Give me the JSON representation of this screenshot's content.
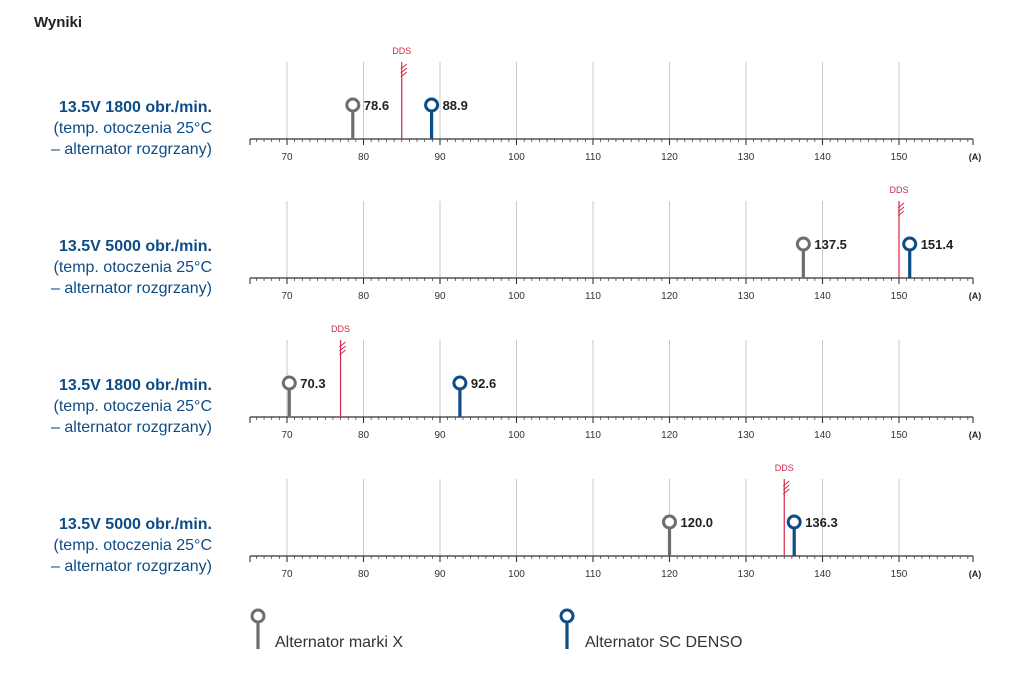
{
  "heading": "Wyniki",
  "colors": {
    "marka_x": "#6e6e6e",
    "denso": "#0e4c86",
    "dds": "#d0284b",
    "grid": "#c8c8c8",
    "axis": "#333333"
  },
  "chart_data": [
    {
      "type": "scatter",
      "title_line1": "13.5V 1800 obr./min.",
      "title_line2": "(temp. otoczenia 25°C",
      "title_line3": "– alternator rozgrzany)",
      "dds_label": "DDS",
      "dds_value": 85,
      "series": [
        {
          "name": "Alternator marki X",
          "value": 78.6,
          "label": "78.6"
        },
        {
          "name": "Alternator SC DENSO",
          "value": 88.9,
          "label": "88.9"
        }
      ],
      "xticks": [
        "70",
        "80",
        "90",
        "100",
        "110",
        "120",
        "130",
        "140",
        "150"
      ],
      "xlim": [
        65,
        160
      ],
      "unit": "(A)"
    },
    {
      "type": "scatter",
      "title_line1": "13.5V 5000 obr./min.",
      "title_line2": "(temp. otoczenia 25°C",
      "title_line3": "– alternator rozgrzany)",
      "dds_label": "DDS",
      "dds_value": 150,
      "series": [
        {
          "name": "Alternator marki X",
          "value": 137.5,
          "label": "137.5"
        },
        {
          "name": "Alternator SC DENSO",
          "value": 151.4,
          "label": "151.4"
        }
      ],
      "xticks": [
        "70",
        "80",
        "90",
        "100",
        "110",
        "120",
        "130",
        "140",
        "150"
      ],
      "xlim": [
        65,
        160
      ],
      "unit": "(A)"
    },
    {
      "type": "scatter",
      "title_line1": "13.5V 1800 obr./min.",
      "title_line2": "(temp. otoczenia 25°C",
      "title_line3": "– alternator rozgrzany)",
      "dds_label": "DDS",
      "dds_value": 77,
      "series": [
        {
          "name": "Alternator marki X",
          "value": 70.3,
          "label": "70.3"
        },
        {
          "name": "Alternator SC DENSO",
          "value": 92.6,
          "label": "92.6"
        }
      ],
      "xticks": [
        "70",
        "80",
        "90",
        "100",
        "110",
        "120",
        "130",
        "140",
        "150"
      ],
      "xlim": [
        65,
        160
      ],
      "unit": "(A)"
    },
    {
      "type": "scatter",
      "title_line1": "13.5V 5000 obr./min.",
      "title_line2": "(temp. otoczenia 25°C",
      "title_line3": "– alternator rozgrzany)",
      "dds_label": "DDS",
      "dds_value": 135,
      "series": [
        {
          "name": "Alternator marki X",
          "value": 120.0,
          "label": "120.0"
        },
        {
          "name": "Alternator SC DENSO",
          "value": 136.3,
          "label": "136.3"
        }
      ],
      "xticks": [
        "70",
        "80",
        "90",
        "100",
        "110",
        "120",
        "130",
        "140",
        "150"
      ],
      "xlim": [
        65,
        160
      ],
      "unit": "(A)"
    }
  ],
  "legend": [
    {
      "name": "Alternator marki X",
      "color_key": "marka_x"
    },
    {
      "name": "Alternator SC DENSO",
      "color_key": "denso"
    }
  ]
}
